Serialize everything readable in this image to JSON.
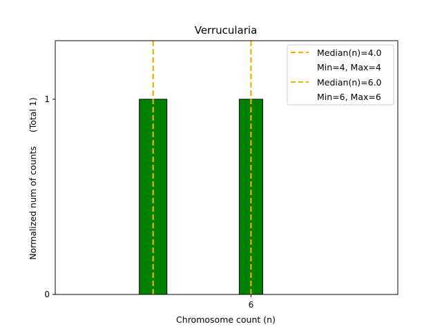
{
  "chart_data": {
    "type": "bar",
    "title": "Verrucularia",
    "xlabel": "Chromosome count (n)",
    "ylabel": "Normalized num of counts     (Total 1)",
    "x_tick_labels": [
      "6"
    ],
    "y_tick_labels": [
      "0",
      "1"
    ],
    "xlim": [
      2,
      9
    ],
    "ylim": [
      0,
      1.3
    ],
    "bars": [
      {
        "x": 4,
        "value": 1
      },
      {
        "x": 6,
        "value": 1
      }
    ],
    "bar_color": "#008000",
    "median_lines": [
      {
        "x": 4.0,
        "label": "Median(n)=4.0",
        "range_label": "Min=4, Max=4"
      },
      {
        "x": 6.0,
        "label": "Median(n)=6.0",
        "range_label": "Min=6, Max=6"
      }
    ],
    "median_color": "#f0b000",
    "legend_position": "top-right",
    "grid": false
  }
}
